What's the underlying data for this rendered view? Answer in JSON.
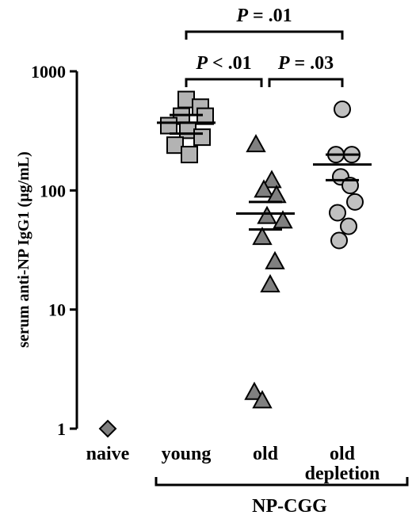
{
  "chart_data": {
    "type": "scatter",
    "title": "",
    "ylabel": "serum anti-NP IgG1 (µg/mL)",
    "yscale": "log",
    "ylim": [
      1,
      1000
    ],
    "yticks": [
      {
        "value": 1,
        "label": "1"
      },
      {
        "value": 10,
        "label": "10"
      },
      {
        "value": 100,
        "label": "100"
      },
      {
        "value": 1000,
        "label": "1000"
      }
    ],
    "categories": [
      {
        "key": "naive",
        "label": "naive"
      },
      {
        "key": "young",
        "label": "young"
      },
      {
        "key": "old",
        "label": "old"
      },
      {
        "key": "old_depletion",
        "label": "old depletion"
      }
    ],
    "group_bracket": {
      "label": "NP-CGG",
      "from": "young",
      "to": "old_depletion"
    },
    "series": [
      {
        "category": "naive",
        "marker": "diamond",
        "color": "#808080",
        "values": [
          1
        ]
      },
      {
        "category": "young",
        "marker": "square",
        "color": "#b3b3b3",
        "values": [
          580,
          500,
          420,
          420,
          350,
          320,
          280,
          240,
          200
        ],
        "mean": 370,
        "sem_upper": 430,
        "sem_lower": 300
      },
      {
        "category": "old",
        "marker": "triangle",
        "color": "#808080",
        "values": [
          240,
          120,
          100,
          90,
          60,
          55,
          40,
          25,
          16,
          2,
          1.7
        ],
        "mean": 64,
        "sem_upper": 80,
        "sem_lower": 47
      },
      {
        "category": "old_depletion",
        "marker": "circle",
        "color": "#c0c0c0",
        "values": [
          480,
          200,
          200,
          130,
          110,
          80,
          65,
          50,
          38
        ],
        "mean": 165,
        "sem_upper": 200,
        "sem_lower": 122
      }
    ],
    "significance": [
      {
        "from": "young",
        "to": "old_depletion",
        "label_italic": "P",
        "label_rest": " = .01"
      },
      {
        "from": "young",
        "to": "old",
        "label_italic": "P",
        "label_rest": " < .01"
      },
      {
        "from": "old",
        "to": "old_depletion",
        "label_italic": "P",
        "label_rest": " = .03"
      }
    ]
  }
}
